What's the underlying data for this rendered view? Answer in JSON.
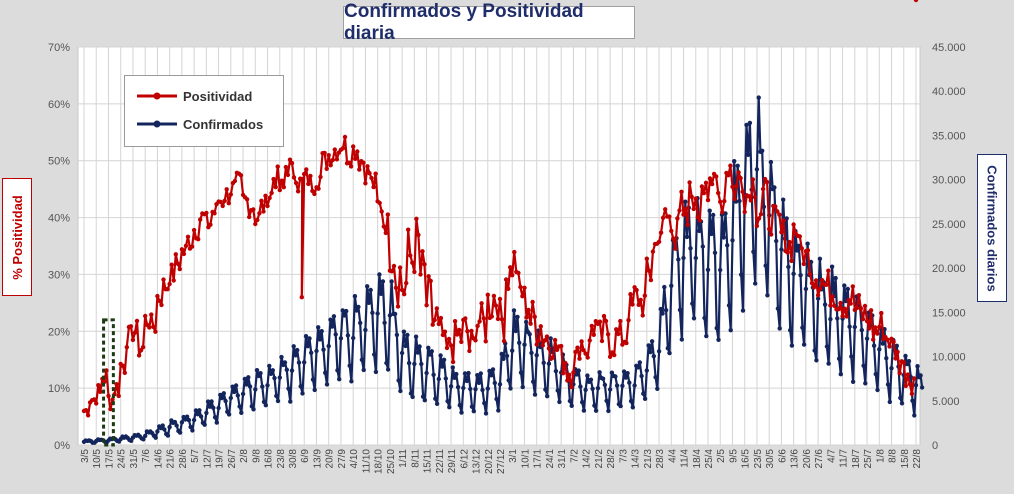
{
  "chart_data": {
    "type": "line",
    "title": "Confirmados  y Positividad  diaria",
    "ylabel_left": "% Positividad",
    "ylabel_right": "Confirmados diarios",
    "left_axis": {
      "min": 0,
      "max": 70,
      "step": 10,
      "tick_labels": [
        "0%",
        "10%",
        "20%",
        "30%",
        "40%",
        "50%",
        "60%",
        "70%"
      ]
    },
    "right_axis": {
      "min": 0,
      "max": 45000,
      "step": 5000,
      "tick_labels": [
        "0",
        "5.000",
        "10.000",
        "15.000",
        "20.000",
        "25.000",
        "30.000",
        "35.000",
        "40.000",
        "45.000"
      ]
    },
    "x_tick_labels": [
      "3/5",
      "10/5",
      "17/5",
      "24/5",
      "31/5",
      "7/6",
      "14/6",
      "21/6",
      "28/6",
      "5/7",
      "12/7",
      "19/7",
      "26/7",
      "2/8",
      "9/8",
      "16/8",
      "23/8",
      "30/8",
      "6/9",
      "13/9",
      "20/9",
      "27/9",
      "4/10",
      "11/10",
      "18/10",
      "25/10",
      "1/11",
      "8/11",
      "15/11",
      "22/11",
      "29/11",
      "6/12",
      "13/12",
      "20/12",
      "27/12",
      "3/1",
      "10/1",
      "17/1",
      "24/1",
      "31/1",
      "7/2",
      "14/2",
      "21/2",
      "28/2",
      "7/3",
      "14/3",
      "21/3",
      "28/3",
      "4/4",
      "11/4",
      "18/4",
      "25/4",
      "2/5",
      "9/5",
      "16/5",
      "23/5",
      "30/5",
      "6/6",
      "13/6",
      "20/6",
      "27/6",
      "4/7",
      "11/7",
      "18/7",
      "25/7",
      "1/8",
      "8/8",
      "15/8",
      "22/8"
    ],
    "grid": true,
    "legend_position": "top-left",
    "series": [
      {
        "name": "Positividad",
        "axis": "left",
        "color": "#c00000",
        "x_week_index": [
          0,
          0.5,
          1,
          1.5,
          2,
          2.5,
          3,
          3.5,
          4,
          4.5,
          5,
          5.5,
          6,
          6.5,
          7,
          7.5,
          8,
          8.5,
          9,
          9.5,
          10,
          10.5,
          11,
          11.5,
          12,
          12.5,
          13,
          13.5,
          14,
          14.5,
          15,
          15.5,
          16,
          16.5,
          17,
          17.5,
          17.8,
          18,
          18.5,
          19,
          19.5,
          20,
          20.5,
          21,
          21.5,
          22,
          22.5,
          23,
          23.5,
          24,
          24.5,
          25,
          25.5,
          26,
          26.5,
          27,
          27.5,
          28,
          28.5,
          29,
          29.5,
          30,
          30.5,
          31,
          31.5,
          32,
          32.5,
          33,
          33.5,
          34,
          34.5,
          35,
          35.5,
          36,
          36.5,
          37,
          37.5,
          38,
          38.5,
          39,
          39.5,
          40,
          40.5,
          41,
          41.5,
          42,
          42.5,
          43,
          43.5,
          44,
          44.5,
          45,
          45.5,
          46,
          46.5,
          47,
          47.5,
          48,
          48.5,
          49,
          49.5,
          50,
          50.5,
          51,
          51.5,
          52,
          52.5,
          53,
          53.5,
          54,
          54.5,
          55,
          55.5,
          56,
          56.5,
          57,
          57.5,
          58,
          58.5,
          59,
          59.5,
          60,
          60.5,
          61,
          61.5,
          62,
          62.5,
          63,
          63.5,
          64,
          64.5,
          65,
          65.5,
          66,
          66.5,
          67,
          67.5,
          68,
          68.5
        ],
        "values": [
          6,
          8,
          9,
          12,
          8,
          10,
          14,
          19,
          20,
          17,
          22,
          21,
          26,
          28,
          30,
          32,
          34,
          36,
          38,
          40,
          39,
          41,
          43,
          44,
          45,
          46,
          43,
          42,
          40,
          42,
          44,
          47,
          45,
          49,
          48,
          46,
          26,
          47,
          46,
          47,
          50,
          51,
          52,
          53,
          51,
          52,
          50,
          48,
          46,
          42,
          39,
          34,
          30,
          28,
          33,
          35,
          30,
          25,
          22,
          19,
          16,
          18,
          19,
          20,
          17,
          22,
          21,
          25,
          26,
          22,
          30,
          32,
          27,
          25,
          22,
          21,
          19,
          18,
          17,
          15,
          13,
          15,
          18,
          17,
          21,
          19,
          20,
          18,
          19,
          19,
          24,
          26,
          25,
          30,
          35,
          38,
          40,
          37,
          42,
          39,
          44,
          41,
          47,
          44,
          47,
          43,
          49,
          45,
          47,
          44,
          46,
          41,
          44,
          40,
          39,
          37,
          35,
          38,
          34,
          33,
          30,
          29,
          28,
          27,
          26,
          25,
          26,
          24,
          23,
          22,
          20,
          21,
          19,
          17,
          15,
          13,
          12
        ],
        "noise_amplitude": [
          1,
          1,
          2,
          2,
          2,
          2,
          2,
          2,
          2,
          2,
          2,
          2,
          2,
          2,
          2,
          2,
          2,
          2,
          2,
          2,
          2,
          2,
          2,
          2,
          2,
          2,
          2,
          2,
          2,
          2,
          2,
          2,
          2,
          2,
          2,
          2,
          0,
          2,
          2,
          2,
          2,
          2,
          2,
          2,
          2,
          2,
          2,
          2,
          2,
          2,
          2,
          4,
          6,
          6,
          6,
          6,
          5,
          5,
          5,
          4,
          4,
          4,
          4,
          4,
          4,
          4,
          4,
          4,
          4,
          4,
          4,
          4,
          4,
          4,
          4,
          4,
          3,
          3,
          3,
          3,
          3,
          3,
          3,
          3,
          3,
          3,
          3,
          3,
          3,
          3,
          3,
          3,
          3,
          3,
          3,
          3,
          3,
          3,
          3,
          3,
          3,
          3,
          3,
          3,
          3,
          3,
          3,
          3,
          3,
          3,
          3,
          3,
          3,
          3,
          3,
          3,
          3,
          3,
          3,
          3,
          3,
          3,
          3,
          3,
          3,
          3,
          3,
          3,
          3,
          3,
          3,
          3,
          3,
          3,
          3,
          3,
          3
        ],
        "annotation_box": {
          "from_week": 1.6,
          "to_week": 2.4,
          "from_value": 0,
          "to_value": 22
        }
      },
      {
        "name": "Confirmados",
        "axis": "right",
        "color": "#13255c",
        "x_week_index": [
          0,
          1,
          2,
          3,
          4,
          5,
          6,
          7,
          8,
          9,
          10,
          11,
          12,
          13,
          14,
          15,
          16,
          17,
          18,
          19,
          20,
          21,
          22,
          23,
          24,
          25,
          26,
          27,
          28,
          29,
          30,
          31,
          32,
          33,
          34,
          35,
          36,
          37,
          38,
          39,
          40,
          41,
          42,
          43,
          44,
          45,
          46,
          47,
          48,
          49,
          50,
          51,
          52,
          53,
          54,
          55,
          56,
          57,
          58,
          59,
          60,
          61,
          62,
          63,
          64,
          65,
          66,
          67,
          68,
          68.5
        ],
        "peak_values": [
          500,
          600,
          700,
          900,
          1100,
          1400,
          2000,
          2600,
          3200,
          3800,
          4600,
          5600,
          6600,
          7500,
          8200,
          8600,
          9600,
          11000,
          12500,
          13500,
          14500,
          15500,
          16500,
          17500,
          19000,
          18500,
          13500,
          12000,
          11500,
          10500,
          9000,
          8500,
          8000,
          8500,
          9500,
          15000,
          14500,
          13000,
          12000,
          10500,
          9000,
          8000,
          8000,
          8500,
          8500,
          9000,
          11000,
          14500,
          23000,
          27000,
          28000,
          27000,
          26000,
          30000,
          37000,
          39000,
          33000,
          28000,
          24500,
          22500,
          21000,
          19500,
          19000,
          17500,
          15500,
          14000,
          12500,
          10500,
          9000,
          8000
        ],
        "trough_values": [
          200,
          250,
          300,
          400,
          500,
          700,
          900,
          1200,
          1500,
          1800,
          2300,
          2800,
          3300,
          3800,
          4200,
          4400,
          4800,
          5300,
          6200,
          6700,
          7100,
          7500,
          7800,
          8000,
          8500,
          8300,
          5500,
          5000,
          4800,
          4500,
          4000,
          3800,
          3700,
          3900,
          4200,
          6500,
          6300,
          5800,
          5300,
          4800,
          4200,
          3900,
          3900,
          4100,
          4100,
          4300,
          5200,
          7000,
          11000,
          13000,
          13500,
          12500,
          12000,
          14000,
          17000,
          18500,
          15500,
          13000,
          11500,
          10500,
          9500,
          8900,
          8500,
          7700,
          6800,
          6000,
          5200,
          4200,
          3600,
          6500
        ]
      }
    ]
  }
}
